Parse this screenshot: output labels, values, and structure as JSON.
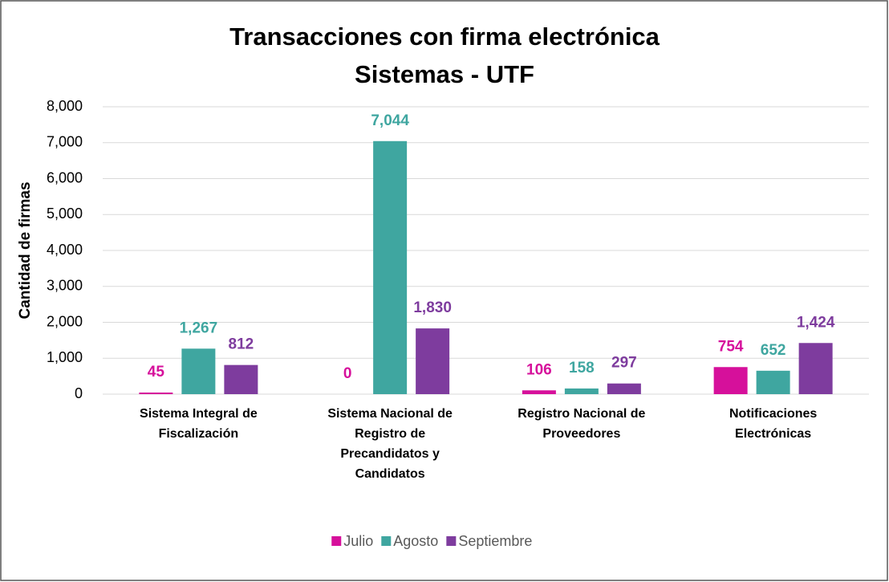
{
  "chart_data": {
    "type": "bar",
    "title": [
      "Transacciones con firma electrónica",
      "Sistemas - UTF"
    ],
    "y_label": "Cantidad de firmas",
    "categories": [
      "Sistema Integral de Fiscalización",
      "Sistema Nacional de Registro de Precandidatos y Candidatos",
      "Registro Nacional de Proveedores",
      "Notificaciones Electrónicas"
    ],
    "series": [
      {
        "name": "Julio",
        "color": "#d6109b",
        "values": [
          45,
          0,
          106,
          754
        ]
      },
      {
        "name": "Agosto",
        "color": "#3fa6a0",
        "values": [
          1267,
          7044,
          158,
          652
        ]
      },
      {
        "name": "Septiembre",
        "color": "#7e3c9e",
        "values": [
          812,
          1830,
          297,
          1424
        ]
      }
    ],
    "value_labels": [
      [
        "45",
        "0",
        "106",
        "754"
      ],
      [
        "1,267",
        "7,044",
        "158",
        "652"
      ],
      [
        "812",
        "1,830",
        "297",
        "1,424"
      ]
    ],
    "ylim": [
      0,
      8000
    ],
    "yticks": [
      0,
      {
        "value": 1000,
        "label": "1,000"
      },
      {
        "value": 2000,
        "label": "2,000"
      },
      {
        "value": 3000,
        "label": "3,000"
      },
      {
        "value": 4000,
        "label": "4,000"
      },
      {
        "value": 5000,
        "label": "5,000"
      },
      {
        "value": 6000,
        "label": "6,000"
      },
      {
        "value": 7000,
        "label": "7,000"
      },
      {
        "value": 8000,
        "label": "8,000"
      }
    ],
    "grid": true,
    "legend": "bottom"
  }
}
